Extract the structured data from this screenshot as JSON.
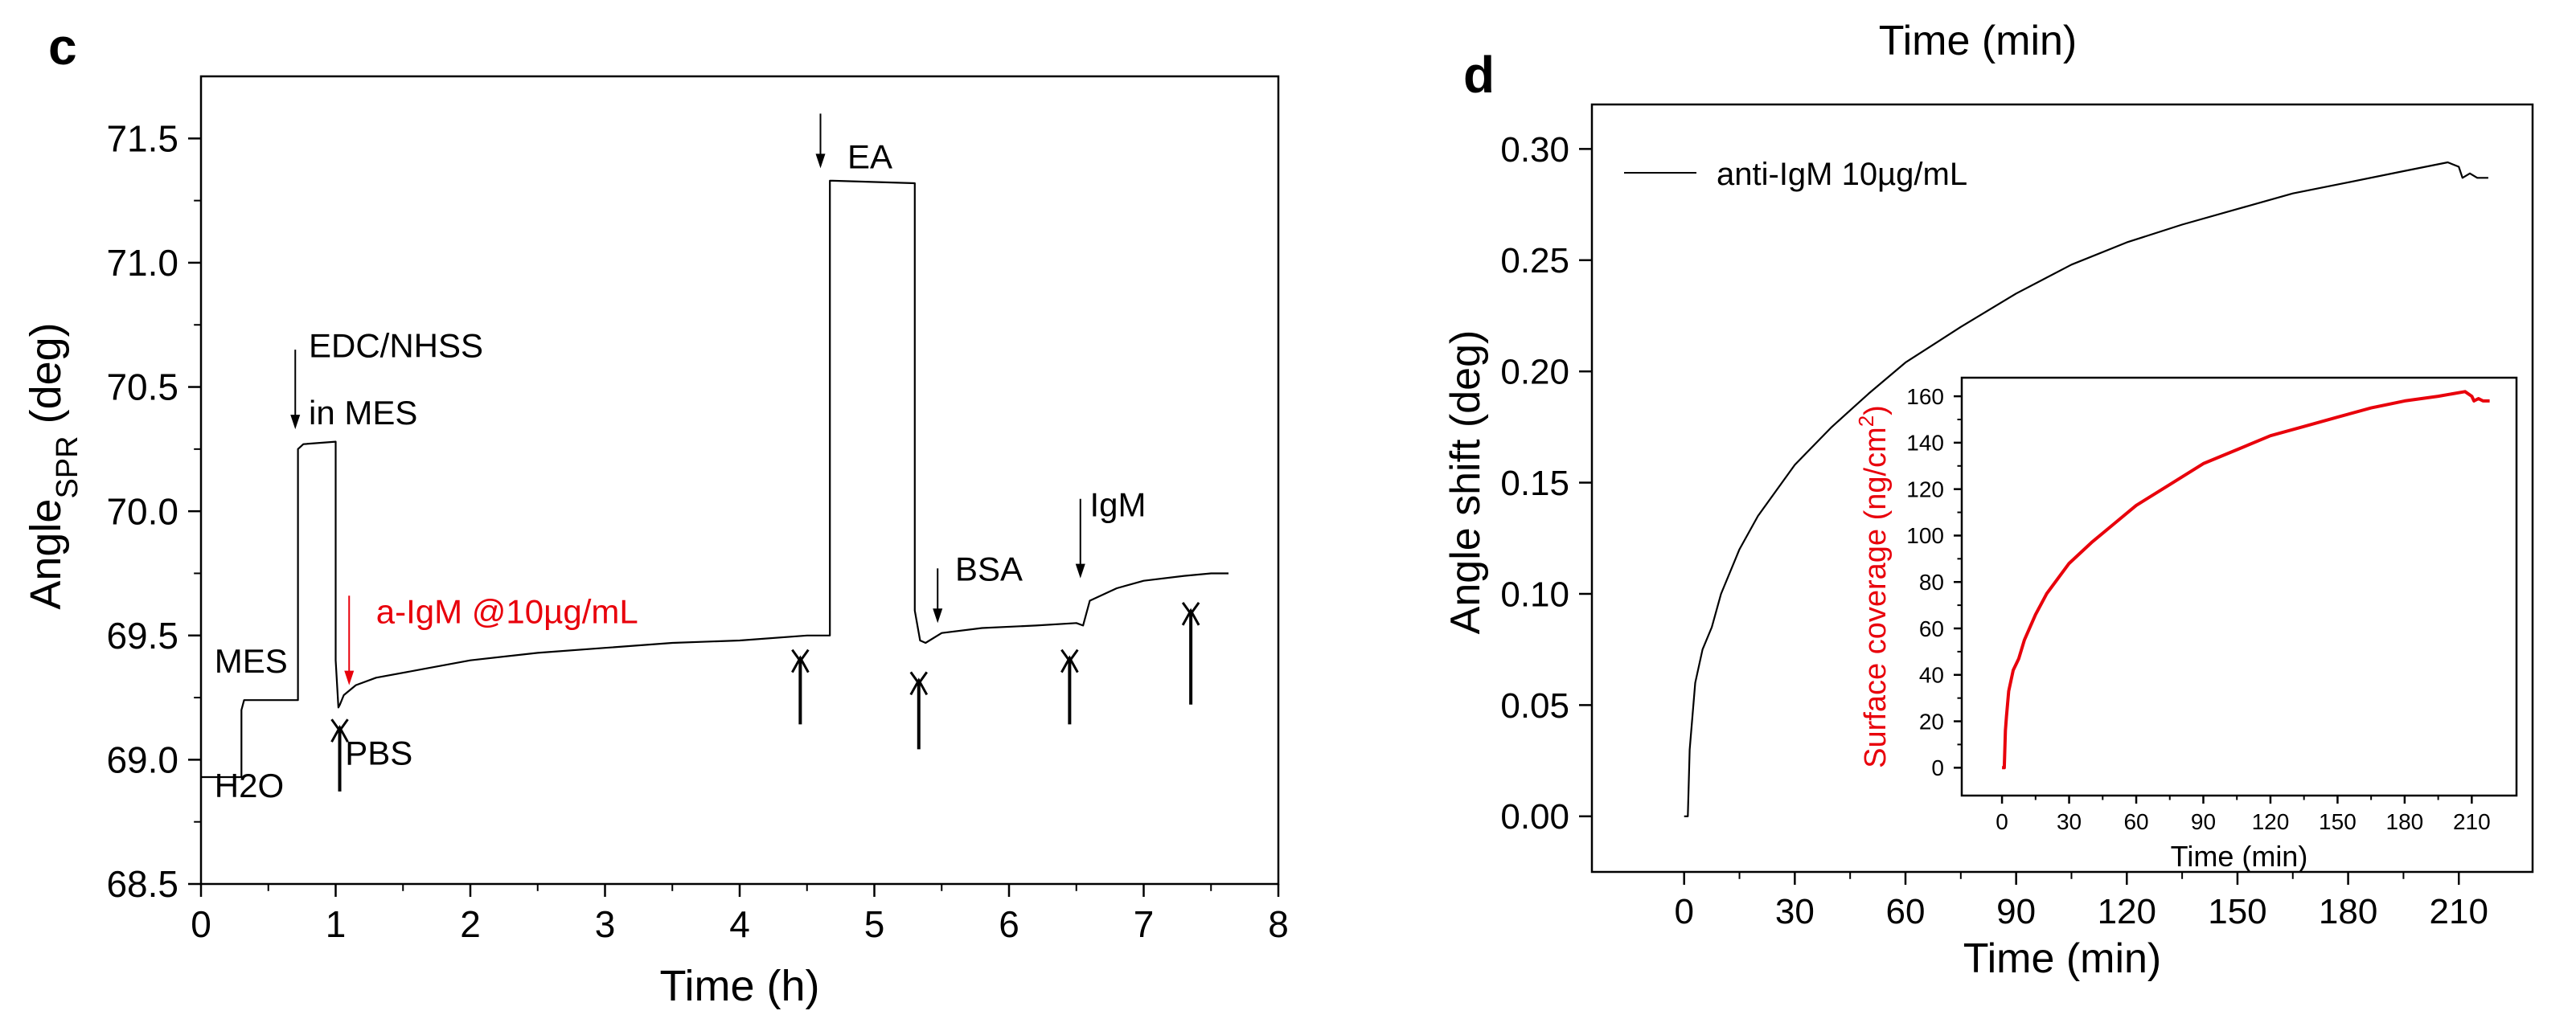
{
  "colors": {
    "axis": "#000000",
    "trace": "#000000",
    "highlight": "#e8000b",
    "inset": "#e8000b"
  },
  "chart_data": [
    {
      "panel": "c",
      "type": "line",
      "xlabel": "Time (h)",
      "ylabel": "Angle",
      "ylabel_sub": "SPR",
      "ylabel_unit": " (deg)",
      "xlim": [
        0,
        8
      ],
      "ylim": [
        68.5,
        71.75
      ],
      "xticks": [
        0,
        1,
        2,
        3,
        4,
        5,
        6,
        7,
        8
      ],
      "yticks": [
        68.5,
        69.0,
        69.5,
        70.0,
        70.5,
        71.0,
        71.5
      ],
      "series": [
        {
          "name": "SPR angle",
          "x": [
            0.0,
            0.3,
            0.3,
            0.32,
            0.32,
            0.72,
            0.72,
            0.74,
            0.76,
            1.0,
            1.0,
            1.02,
            1.03,
            1.06,
            1.15,
            1.3,
            1.6,
            2.0,
            2.5,
            3.0,
            3.5,
            4.0,
            4.5,
            4.67,
            4.67,
            4.69,
            5.3,
            5.3,
            5.34,
            5.38,
            5.5,
            5.8,
            6.2,
            6.5,
            6.55,
            6.6,
            6.8,
            7.0,
            7.3,
            7.5,
            7.63
          ],
          "y": [
            68.93,
            68.93,
            69.2,
            69.24,
            69.24,
            69.24,
            70.25,
            70.26,
            70.27,
            70.28,
            69.4,
            69.21,
            69.22,
            69.26,
            69.3,
            69.33,
            69.36,
            69.4,
            69.43,
            69.45,
            69.47,
            69.48,
            69.5,
            69.5,
            71.33,
            71.33,
            71.32,
            69.6,
            69.48,
            69.47,
            69.51,
            69.53,
            69.54,
            69.55,
            69.54,
            69.64,
            69.69,
            69.72,
            69.74,
            69.75,
            69.75
          ]
        }
      ],
      "labels": [
        {
          "text": "MES",
          "x": 0.1,
          "y": 69.35
        },
        {
          "text": "H2O",
          "x": 0.1,
          "y": 68.85
        },
        {
          "text": "EDC/NHSS",
          "x": 0.8,
          "y": 70.62
        },
        {
          "text": "in MES",
          "x": 0.8,
          "y": 70.35
        },
        {
          "text": "PBS",
          "x": 1.07,
          "y": 68.98
        },
        {
          "text": "a-IgM @10µg/mL",
          "x": 1.3,
          "y": 69.55
        },
        {
          "text": "EA",
          "x": 4.8,
          "y": 71.38
        },
        {
          "text": "BSA",
          "x": 5.6,
          "y": 69.72
        },
        {
          "text": "IgM",
          "x": 6.6,
          "y": 69.98
        }
      ],
      "down_arrows": [
        {
          "x": 0.7,
          "y_from": 70.65,
          "y_to": 70.33
        },
        {
          "x": 1.1,
          "y_from": 69.66,
          "y_to": 69.3
        },
        {
          "x": 4.6,
          "y_from": 71.6,
          "y_to": 71.38
        },
        {
          "x": 5.47,
          "y_from": 69.77,
          "y_to": 69.55
        },
        {
          "x": 6.53,
          "y_from": 70.05,
          "y_to": 69.73
        }
      ],
      "marker_arrows": [
        {
          "x": 1.03,
          "y_from": 69.05,
          "y_to": 69.13
        },
        {
          "x": 4.45,
          "y_from": 69.32,
          "y_to": 69.41
        },
        {
          "x": 5.33,
          "y_from": 69.22,
          "y_to": 69.32
        },
        {
          "x": 6.45,
          "y_from": 69.32,
          "y_to": 69.41
        },
        {
          "x": 7.35,
          "y_from": 69.4,
          "y_to": 69.6
        }
      ]
    },
    {
      "panel": "d",
      "type": "line",
      "title_fragment": "Time (min)",
      "xlabel": "Time (min)",
      "ylabel": "Angle shift (deg)",
      "xlim": [
        -25,
        230
      ],
      "ylim": [
        -0.025,
        0.32
      ],
      "xticks": [
        0,
        30,
        60,
        90,
        120,
        150,
        180,
        210
      ],
      "yticks": [
        0.0,
        0.05,
        0.1,
        0.15,
        0.2,
        0.25,
        0.3
      ],
      "legend": "top-left",
      "series": [
        {
          "name": "anti-IgM 10µg/mL",
          "x": [
            0,
            1,
            1.5,
            2,
            3,
            5,
            7.5,
            10,
            15,
            20,
            30,
            40,
            50,
            60,
            75,
            90,
            105,
            120,
            135,
            150,
            165,
            180,
            195,
            207,
            210,
            211,
            213,
            215,
            218
          ],
          "y": [
            0.0,
            0.0,
            0.03,
            0.04,
            0.06,
            0.075,
            0.085,
            0.1,
            0.12,
            0.135,
            0.158,
            0.175,
            0.19,
            0.204,
            0.22,
            0.235,
            0.248,
            0.258,
            0.266,
            0.273,
            0.28,
            0.285,
            0.29,
            0.294,
            0.292,
            0.287,
            0.289,
            0.287,
            0.287
          ]
        }
      ],
      "inset": {
        "xlabel": "Time (min)",
        "ylabel": "Surface coverage (ng/cm",
        "ylabel_sup": "2",
        "ylabel_close": ")",
        "xlim": [
          -18,
          230
        ],
        "ylim": [
          -12,
          168
        ],
        "xticks": [
          0,
          30,
          60,
          90,
          120,
          150,
          180,
          210
        ],
        "yticks": [
          0,
          20,
          40,
          60,
          80,
          100,
          120,
          140,
          160
        ],
        "series": [
          {
            "name": "Surface coverage",
            "x": [
              0,
              1,
              1.5,
              2,
              3,
              5,
              7.5,
              10,
              15,
              20,
              30,
              40,
              50,
              60,
              75,
              90,
              105,
              120,
              135,
              150,
              165,
              180,
              195,
              207,
              210,
              211,
              213,
              215,
              218
            ],
            "y": [
              0,
              0,
              16,
              22,
              33,
              42,
              47,
              55,
              66,
              75,
              88,
              97,
              105,
              113,
              122,
              131,
              137,
              143,
              147,
              151,
              155,
              158,
              160,
              162,
              160,
              158,
              159,
              158,
              158
            ]
          }
        ]
      }
    }
  ]
}
